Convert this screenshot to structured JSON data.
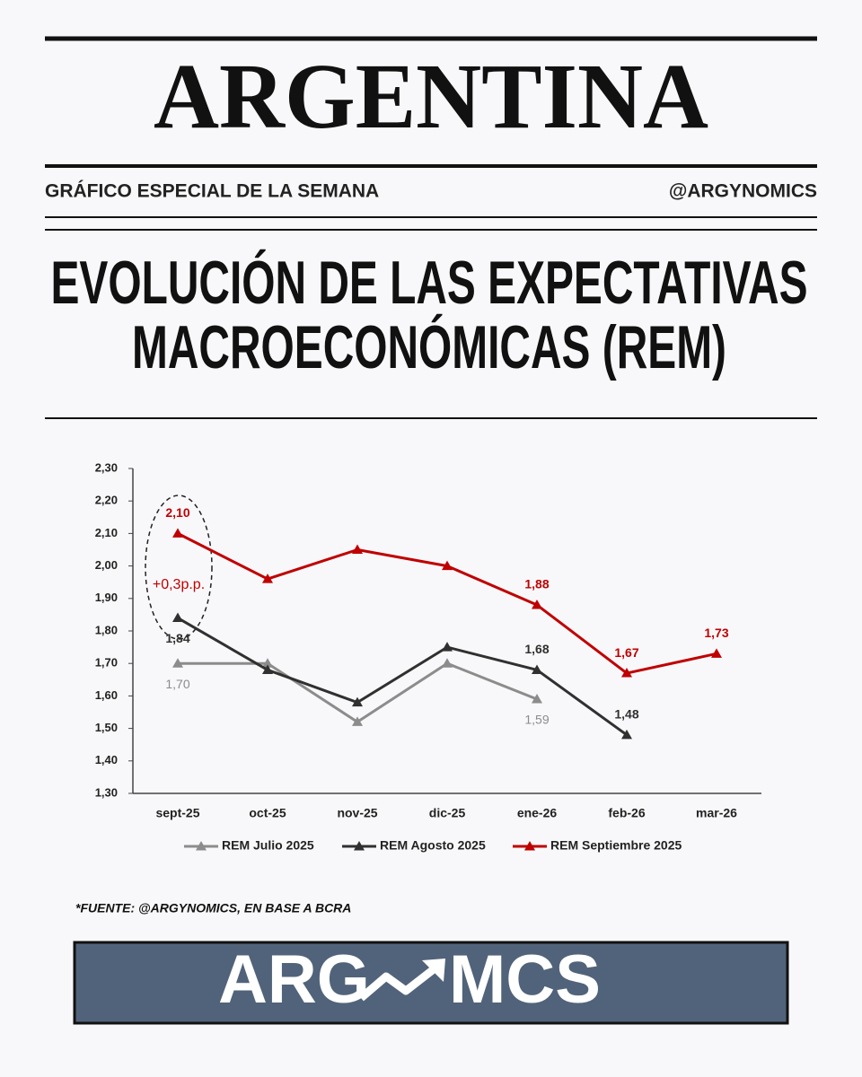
{
  "header": {
    "masthead": "ARGENTINA",
    "section": "GRÁFICO ESPECIAL DE LA SEMANA",
    "handle": "@ARGYNOMICS",
    "title_lines": [
      "EVOLUCIÓN DE LAS EXPECTATIVAS",
      "MACROECONÓMICAS (REM)"
    ]
  },
  "chart_data": {
    "type": "line",
    "categories": [
      "sept-25",
      "oct-25",
      "nov-25",
      "dic-25",
      "ene-26",
      "feb-26",
      "mar-26"
    ],
    "series": [
      {
        "name": "REM Julio 2025",
        "color": "#8c8c8c",
        "values": [
          1.7,
          1.7,
          1.52,
          1.7,
          1.59,
          null,
          null
        ],
        "value_labels": [
          "1,70",
          null,
          null,
          null,
          "1,59",
          null,
          null
        ]
      },
      {
        "name": "REM Agosto 2025",
        "color": "#303030",
        "values": [
          1.84,
          1.68,
          1.58,
          1.75,
          1.68,
          1.48,
          null
        ],
        "value_labels": [
          "1,84",
          null,
          null,
          null,
          "1,68",
          "1,48",
          null
        ]
      },
      {
        "name": "REM Septiembre 2025",
        "color": "#c00000",
        "values": [
          2.1,
          1.96,
          2.05,
          2.0,
          1.88,
          1.67,
          1.73
        ],
        "value_labels": [
          "2,10",
          null,
          null,
          null,
          "1,88",
          "1,67",
          "1,73"
        ]
      }
    ],
    "ylim": [
      1.3,
      2.3
    ],
    "yticks": [
      {
        "value": 1.3,
        "label": "1,30"
      },
      {
        "value": 1.4,
        "label": "1,40"
      },
      {
        "value": 1.5,
        "label": "1,50"
      },
      {
        "value": 1.6,
        "label": "1,60"
      },
      {
        "value": 1.7,
        "label": "1,70"
      },
      {
        "value": 1.8,
        "label": "1,80"
      },
      {
        "value": 1.9,
        "label": "1,90"
      },
      {
        "value": 2.0,
        "label": "2,00"
      },
      {
        "value": 2.1,
        "label": "2,10"
      },
      {
        "value": 2.2,
        "label": "2,20"
      },
      {
        "value": 2.3,
        "label": "2,30"
      }
    ],
    "annotation": "+0,3p.p.",
    "legend": "bottom",
    "grid": false
  },
  "footer": {
    "source": "*FUENTE: @ARGYNOMICS, EN BASE A BCRA",
    "logo_left": "ARG",
    "logo_right": "MCS"
  }
}
